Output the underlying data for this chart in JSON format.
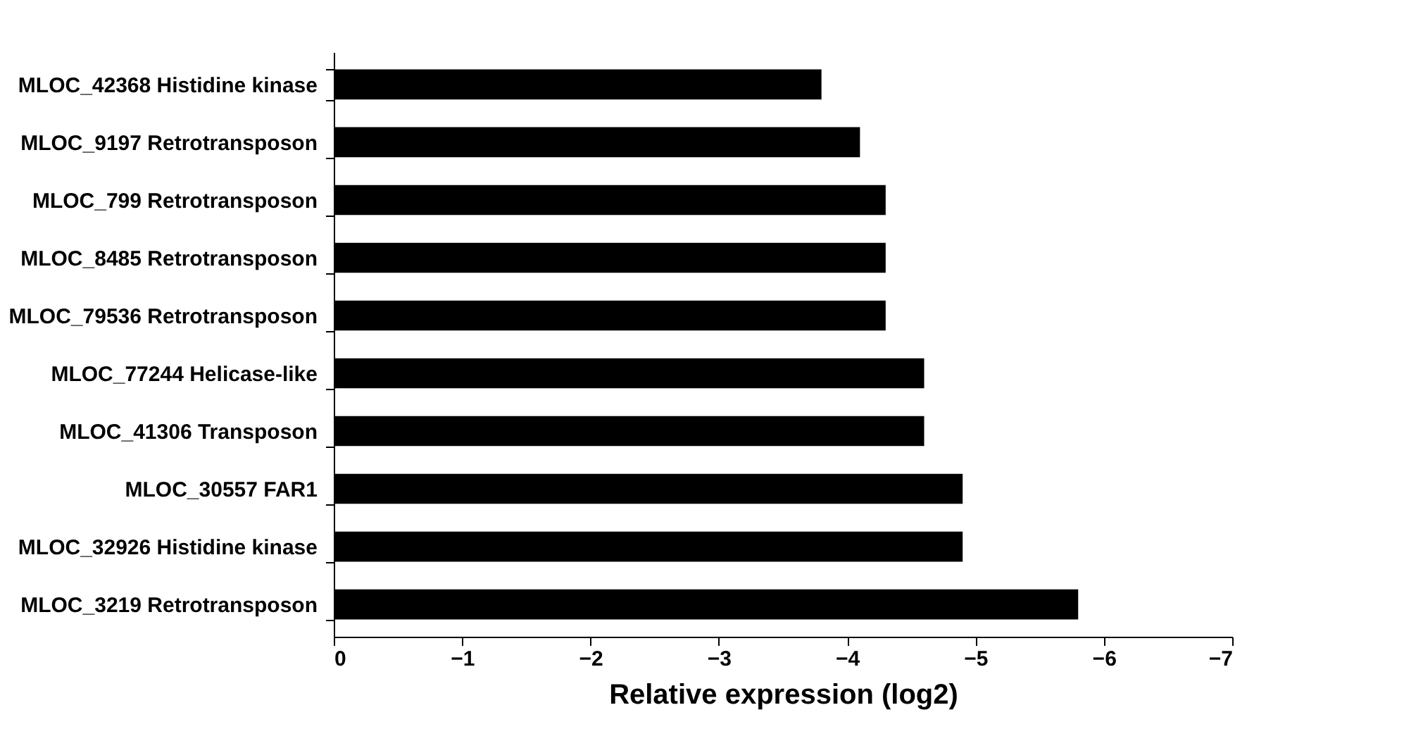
{
  "chart_data": {
    "type": "bar",
    "orientation": "horizontal",
    "xlabel": "Relative expression (log2)",
    "categories": [
      "MLOC_42368 Histidine kinase",
      "MLOC_9197  Retrotransposon",
      "MLOC_799 Retrotransposon",
      "MLOC_8485 Retrotransposon",
      "MLOC_79536 Retrotransposon",
      "MLOC_77244 Helicase-like",
      "MLOC_41306 Transposon",
      "MLOC_30557 FAR1",
      "MLOC_32926 Histidine kinase",
      "MLOC_3219 Retrotransposon"
    ],
    "values": [
      -3.8,
      -4.1,
      -4.3,
      -4.3,
      -4.3,
      -4.6,
      -4.6,
      -4.9,
      -4.9,
      -5.8
    ],
    "color": "#000000",
    "xlim": [
      0,
      -7
    ],
    "xticks": [
      0,
      -1,
      -2,
      -3,
      -4,
      -5,
      -6,
      -7
    ],
    "grid": false
  }
}
